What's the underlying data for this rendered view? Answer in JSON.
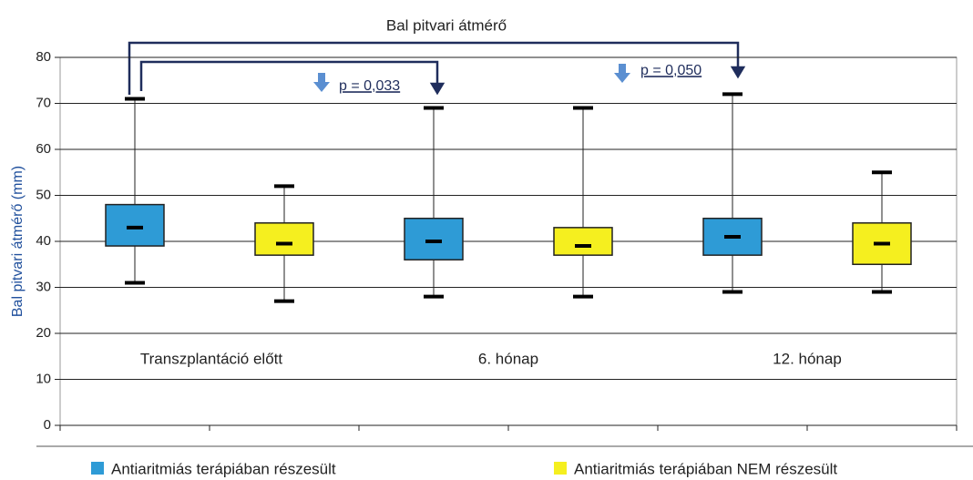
{
  "chart_data": {
    "type": "box",
    "title": "Bal pitvari átmérő",
    "y_label": "Bal pitvari átmérő (mm)",
    "categories": [
      "Transzplantáció előtt",
      "6. hónap",
      "12. hónap"
    ],
    "series": [
      {
        "name": "Antiaritmiás terápiában részesült",
        "color": "#2e9bd6",
        "min": [
          31,
          28,
          29
        ],
        "q1": [
          39,
          36,
          37
        ],
        "median": [
          43,
          40,
          41
        ],
        "q3": [
          48,
          45,
          45
        ],
        "max": [
          71,
          69,
          72
        ]
      },
      {
        "name": "Antiaritmiás terápiában NEM részesült",
        "color": "#f5ef1f",
        "min": [
          27,
          28,
          29
        ],
        "q1": [
          37,
          37,
          35
        ],
        "median": [
          39.5,
          39,
          39.5
        ],
        "q3": [
          44,
          43,
          44
        ],
        "max": [
          52,
          69,
          55
        ]
      }
    ],
    "annotations": [
      "p = 0,033",
      "p = 0,050"
    ],
    "ylim": [
      0,
      80
    ],
    "yticks": [
      0,
      10,
      20,
      30,
      40,
      50,
      60,
      70,
      80
    ],
    "grid": true
  }
}
